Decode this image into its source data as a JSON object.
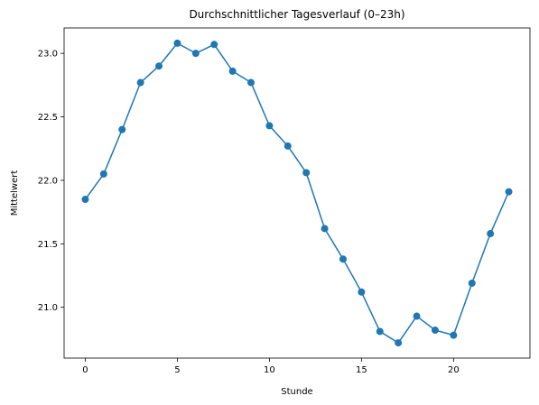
{
  "chart_data": {
    "type": "line",
    "title": "Durchschnittlicher Tagesverlauf (0–23h)",
    "xlabel": "Stunde",
    "ylabel": "Mittelwert",
    "xlim": [
      -1.15,
      24.15
    ],
    "ylim": [
      20.6,
      23.2
    ],
    "xticks": [
      0,
      5,
      10,
      15,
      20
    ],
    "yticks": [
      21.0,
      21.5,
      22.0,
      22.5,
      23.0
    ],
    "xtick_labels": [
      "0",
      "5",
      "10",
      "15",
      "20"
    ],
    "ytick_labels": [
      "21.0",
      "21.5",
      "22.0",
      "22.5",
      "23.0"
    ],
    "grid": false,
    "legend": "none",
    "color": "#1f77b4",
    "marker": "circle",
    "x": [
      0,
      1,
      2,
      3,
      4,
      5,
      6,
      7,
      8,
      9,
      10,
      11,
      12,
      13,
      14,
      15,
      16,
      17,
      18,
      19,
      20,
      21,
      22,
      23
    ],
    "values": [
      21.85,
      22.05,
      22.4,
      22.77,
      22.9,
      23.08,
      23.0,
      23.07,
      22.86,
      22.77,
      22.43,
      22.27,
      22.06,
      21.62,
      21.38,
      21.12,
      20.81,
      20.72,
      20.93,
      20.82,
      20.78,
      21.19,
      21.58,
      21.91
    ]
  }
}
